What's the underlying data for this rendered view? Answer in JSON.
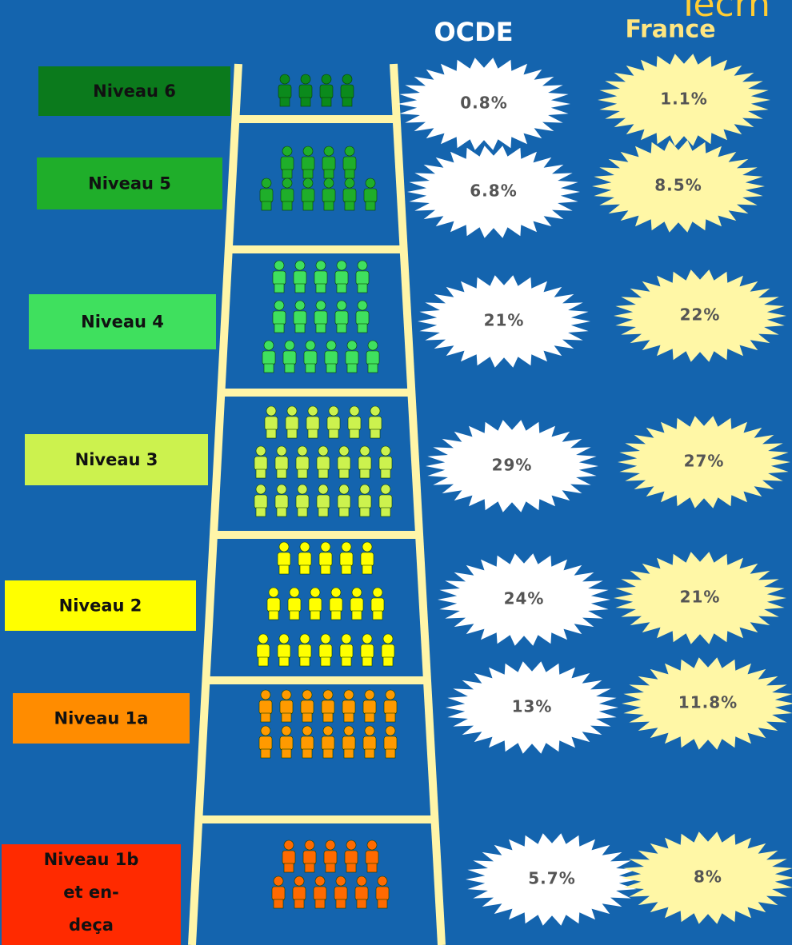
{
  "header": {
    "cut_title": "Tecrn",
    "ocde": "OCDE",
    "france": "France"
  },
  "levels": [
    {
      "label": "Niveau 6",
      "ocde": "0.8%",
      "france": "1.1%"
    },
    {
      "label": "Niveau 5",
      "ocde": "6.8%",
      "france": "8.5%"
    },
    {
      "label": "Niveau 4",
      "ocde": "21%",
      "france": "22%"
    },
    {
      "label": "Niveau 3",
      "ocde": "29%",
      "france": "27%"
    },
    {
      "label": "Niveau 2",
      "ocde": "24%",
      "france": "21%"
    },
    {
      "label": "Niveau 1a",
      "ocde": "13%",
      "france": "11.8%"
    },
    {
      "label": "Niveau 1b et en-deça",
      "ocde": "5.7%",
      "france": "8%"
    }
  ]
}
